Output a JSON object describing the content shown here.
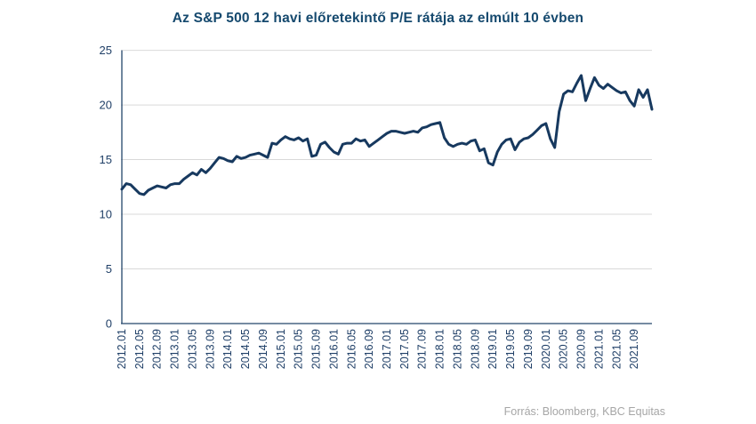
{
  "chart_data": {
    "type": "line",
    "title": "Az S&P 500 12 havi előretekintő P/E rátája az elmúlt 10 évben",
    "series_name": "S&P 500 12 havi előretekintő P/E ráta",
    "x": [
      "2012.01",
      "2012.02",
      "2012.03",
      "2012.04",
      "2012.05",
      "2012.06",
      "2012.07",
      "2012.08",
      "2012.09",
      "2012.10",
      "2012.11",
      "2012.12",
      "2013.01",
      "2013.02",
      "2013.03",
      "2013.04",
      "2013.05",
      "2013.06",
      "2013.07",
      "2013.08",
      "2013.09",
      "2013.10",
      "2013.11",
      "2013.12",
      "2014.01",
      "2014.02",
      "2014.03",
      "2014.04",
      "2014.05",
      "2014.06",
      "2014.07",
      "2014.08",
      "2014.09",
      "2014.10",
      "2014.11",
      "2014.12",
      "2015.01",
      "2015.02",
      "2015.03",
      "2015.04",
      "2015.05",
      "2015.06",
      "2015.07",
      "2015.08",
      "2015.09",
      "2015.10",
      "2015.11",
      "2015.12",
      "2016.01",
      "2016.02",
      "2016.03",
      "2016.04",
      "2016.05",
      "2016.06",
      "2016.07",
      "2016.08",
      "2016.09",
      "2016.10",
      "2016.11",
      "2016.12",
      "2017.01",
      "2017.02",
      "2017.03",
      "2017.04",
      "2017.05",
      "2017.06",
      "2017.07",
      "2017.08",
      "2017.09",
      "2017.10",
      "2017.11",
      "2017.12",
      "2018.01",
      "2018.02",
      "2018.03",
      "2018.04",
      "2018.05",
      "2018.06",
      "2018.07",
      "2018.08",
      "2018.09",
      "2018.10",
      "2018.11",
      "2018.12",
      "2019.01",
      "2019.02",
      "2019.03",
      "2019.04",
      "2019.05",
      "2019.06",
      "2019.07",
      "2019.08",
      "2019.09",
      "2019.10",
      "2019.11",
      "2019.12",
      "2020.01",
      "2020.02",
      "2020.03",
      "2020.04",
      "2020.05",
      "2020.06",
      "2020.07",
      "2020.08",
      "2020.09",
      "2020.10",
      "2020.11",
      "2020.12",
      "2021.01",
      "2021.02",
      "2021.03",
      "2021.04",
      "2021.05",
      "2021.06",
      "2021.07",
      "2021.08",
      "2021.09",
      "2021.10",
      "2021.11",
      "2021.12",
      "2022.01"
    ],
    "values": [
      12.3,
      12.8,
      12.7,
      12.3,
      11.9,
      11.8,
      12.2,
      12.4,
      12.6,
      12.5,
      12.4,
      12.7,
      12.8,
      12.8,
      13.2,
      13.5,
      13.8,
      13.6,
      14.1,
      13.8,
      14.2,
      14.7,
      15.2,
      15.1,
      14.9,
      14.8,
      15.3,
      15.1,
      15.2,
      15.4,
      15.5,
      15.6,
      15.4,
      15.2,
      16.5,
      16.4,
      16.8,
      17.1,
      16.9,
      16.8,
      17.0,
      16.7,
      16.9,
      15.3,
      15.4,
      16.4,
      16.6,
      16.1,
      15.7,
      15.5,
      16.4,
      16.5,
      16.5,
      16.9,
      16.7,
      16.8,
      16.2,
      16.5,
      16.8,
      17.1,
      17.4,
      17.6,
      17.6,
      17.5,
      17.4,
      17.5,
      17.6,
      17.5,
      17.9,
      18.0,
      18.2,
      18.3,
      18.4,
      17.0,
      16.4,
      16.2,
      16.4,
      16.5,
      16.4,
      16.7,
      16.8,
      15.8,
      16.0,
      14.7,
      14.5,
      15.7,
      16.4,
      16.8,
      16.9,
      15.9,
      16.6,
      16.9,
      17.0,
      17.3,
      17.7,
      18.1,
      18.3,
      16.9,
      16.1,
      19.4,
      21.0,
      21.3,
      21.2,
      22.0,
      22.7,
      20.4,
      21.5,
      22.5,
      21.8,
      21.5,
      21.9,
      21.6,
      21.3,
      21.1,
      21.2,
      20.4,
      19.9,
      21.4,
      20.7,
      21.4,
      19.6
    ],
    "x_tick_labels": [
      "2012.01",
      "2012.05",
      "2012.09",
      "2013.01",
      "2013.05",
      "2013.09",
      "2014.01",
      "2014.05",
      "2014.09",
      "2015.01",
      "2015.05",
      "2015.09",
      "2016.01",
      "2016.05",
      "2016.09",
      "2017.01",
      "2017.05",
      "2017.09",
      "2018.01",
      "2018.05",
      "2018.09",
      "2019.01",
      "2019.05",
      "2019.09",
      "2020.01",
      "2020.05",
      "2020.09",
      "2021.01",
      "2021.05",
      "2021.09"
    ],
    "yticks": [
      0,
      5,
      10,
      15,
      20,
      25
    ],
    "ylim": [
      0,
      25
    ],
    "grid": "horizontal",
    "legend": "none",
    "line_color": "#17395f",
    "grid_color": "#d9d9d9",
    "axis_color": "#24466b",
    "tick_label_color": "#1f3f67",
    "title_color": "#15496e"
  },
  "footer": {
    "source": "Forrás: Bloomberg,  KBC Equitas"
  }
}
